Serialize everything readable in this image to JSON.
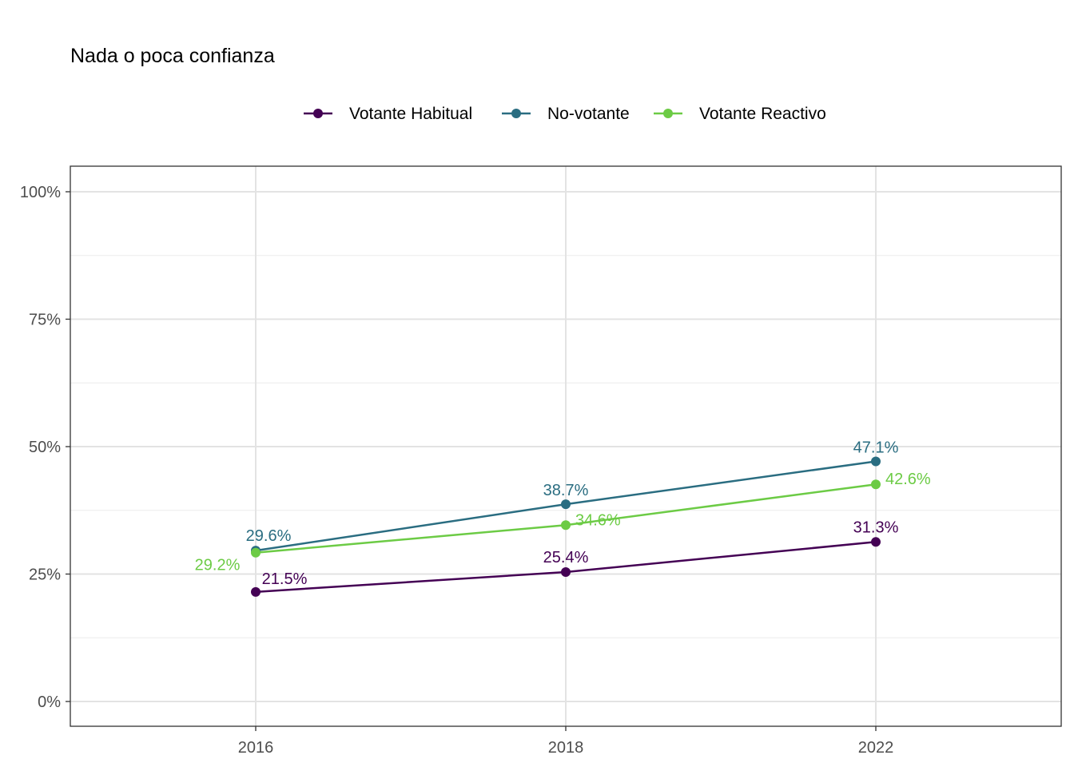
{
  "chart_data": {
    "type": "line",
    "title": "Nada o poca confianza",
    "categories": [
      "2016",
      "2018",
      "2022"
    ],
    "yticks": [
      "0%",
      "25%",
      "50%",
      "75%",
      "100%"
    ],
    "ylim": [
      0,
      100
    ],
    "legend_position": "top",
    "grid": true,
    "series": [
      {
        "name": "Votante Habitual",
        "color": "#440154",
        "values": [
          21.5,
          25.4,
          31.3
        ],
        "labels": [
          "21.5%",
          "25.4%",
          "31.3%"
        ]
      },
      {
        "name": "No-votante",
        "color": "#2A6D81",
        "values": [
          29.6,
          38.7,
          47.1
        ],
        "labels": [
          "29.6%",
          "38.7%",
          "47.1%"
        ]
      },
      {
        "name": "Votante Reactivo",
        "color": "#6CCB45",
        "values": [
          29.2,
          34.6,
          42.6
        ],
        "labels": [
          "29.2%",
          "34.6%",
          "42.6%"
        ]
      }
    ]
  }
}
